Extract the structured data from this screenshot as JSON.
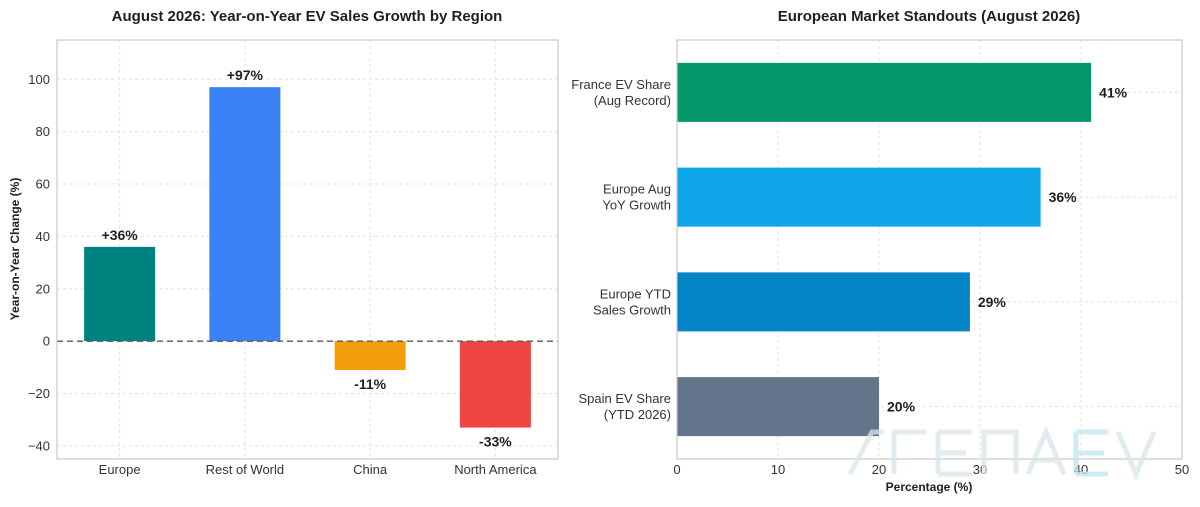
{
  "chart_data": [
    {
      "type": "bar",
      "orientation": "vertical",
      "title": "August 2026: Year-on-Year EV Sales Growth by Region",
      "xlabel": "",
      "ylabel": "Year-on-Year Change (%)",
      "categories": [
        "Europe",
        "Rest of World",
        "China",
        "North America"
      ],
      "values": [
        36,
        97,
        -11,
        -33
      ],
      "data_labels": [
        "+36%",
        "+97%",
        "-11%",
        "-33%"
      ],
      "colors": [
        "#028181",
        "#3b82f6",
        "#f59e0b",
        "#ef4444"
      ],
      "ylim": [
        -45,
        115
      ],
      "yticks": [
        -40,
        -20,
        0,
        20,
        40,
        60,
        80,
        100
      ],
      "reference_line": 0,
      "grid": true
    },
    {
      "type": "bar",
      "orientation": "horizontal",
      "title": "European Market Standouts (August 2026)",
      "xlabel": "Percentage (%)",
      "ylabel": "",
      "categories": [
        [
          "France EV Share",
          "(Aug Record)"
        ],
        [
          "Europe Aug",
          "YoY Growth"
        ],
        [
          "Europe YTD",
          "Sales Growth"
        ],
        [
          "Spain EV Share",
          "(YTD 2026)"
        ]
      ],
      "values": [
        41,
        36,
        29,
        20
      ],
      "data_labels": [
        "41%",
        "36%",
        "29%",
        "20%"
      ],
      "colors": [
        "#059669",
        "#0ea5e9",
        "#0284c7",
        "#64748b"
      ],
      "xlim": [
        0,
        50
      ],
      "xticks": [
        0,
        10,
        20,
        30,
        40,
        50
      ],
      "grid": true
    }
  ]
}
